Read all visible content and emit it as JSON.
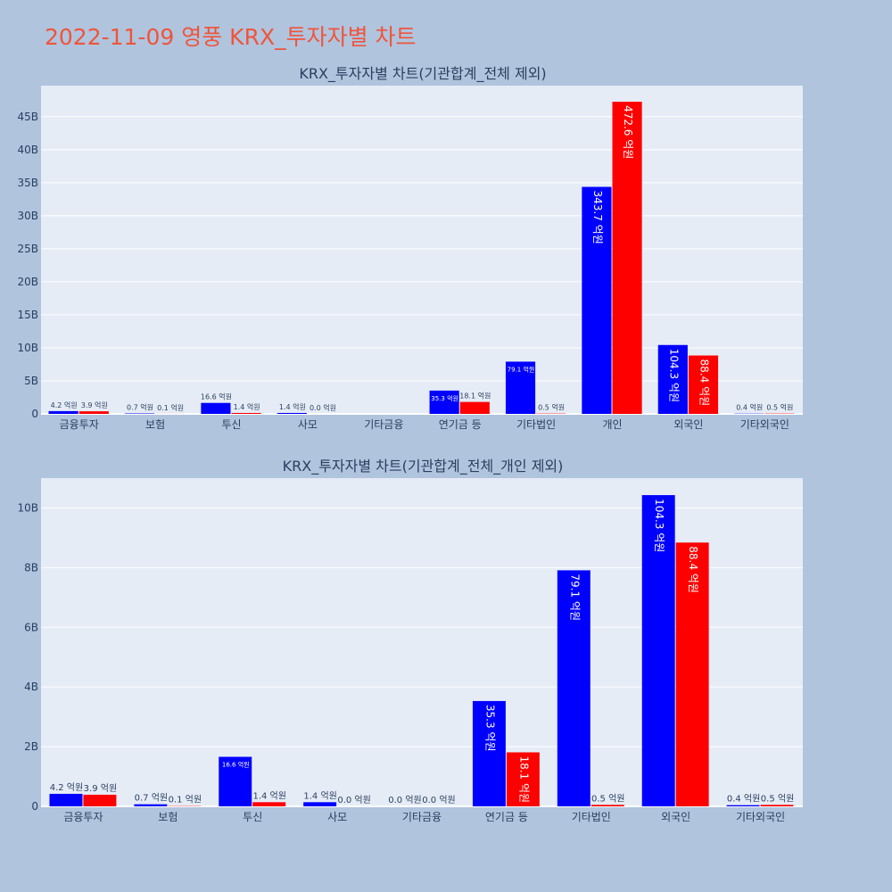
{
  "page_title": "2022-11-09 영풍 KRX_투자자별 차트",
  "colors": {
    "series_a": "#0000ff",
    "series_b": "#ff0000",
    "plot_bg": "#e5ecf6",
    "page_bg": "#b0c4de",
    "title": "#ef553b"
  },
  "chart_data": [
    {
      "type": "bar",
      "title": "KRX_투자자별 차트(기관합계_전체 제외)",
      "categories": [
        "금융투자",
        "보험",
        "투신",
        "사모",
        "기타금융",
        "연기금 등",
        "기타법인",
        "개인",
        "외국인",
        "기타외국인"
      ],
      "series": [
        {
          "values": [
            420000000,
            70000000,
            1660000000,
            140000000,
            0,
            3530000000,
            7910000000,
            34370000000,
            10430000000,
            40000000
          ],
          "labels": [
            "4.2 억원",
            "0.7 억원",
            "16.6 억원",
            "1.4 억원",
            "",
            "35.3 억원",
            "79.1 억원",
            "343.7 억원",
            "104.3 억원",
            "0.4 억원"
          ]
        },
        {
          "values": [
            390000000,
            10000000,
            140000000,
            0,
            0,
            1810000000,
            50000000,
            47260000000,
            8840000000,
            50000000
          ],
          "labels": [
            "3.9 억원",
            "0.1 억원",
            "1.4 억원",
            "0.0 억원",
            "",
            "18.1 억원",
            "0.5 억원",
            "472.6 억원",
            "88.4 억원",
            "0.5 억원"
          ]
        }
      ],
      "yticks": [
        0,
        5000000000,
        10000000000,
        15000000000,
        20000000000,
        25000000000,
        30000000000,
        35000000000,
        40000000000,
        45000000000
      ],
      "ytick_labels": [
        "0",
        "5B",
        "10B",
        "15B",
        "20B",
        "25B",
        "30B",
        "35B",
        "40B",
        "45B"
      ],
      "ylim": [
        0,
        49700000000
      ],
      "grid": true
    },
    {
      "type": "bar",
      "title": "KRX_투자자별 차트(기관합계_전체_개인 제외)",
      "categories": [
        "금융투자",
        "보험",
        "투신",
        "사모",
        "기타금융",
        "연기금 등",
        "기타법인",
        "외국인",
        "기타외국인"
      ],
      "series": [
        {
          "values": [
            420000000,
            70000000,
            1660000000,
            140000000,
            0,
            3530000000,
            7910000000,
            10430000000,
            40000000
          ],
          "labels": [
            "4.2 억원",
            "0.7 억원",
            "16.6 억원",
            "1.4 억원",
            "0.0 억원",
            "35.3 억원",
            "79.1 억원",
            "104.3 억원",
            "0.4 억원"
          ]
        },
        {
          "values": [
            390000000,
            10000000,
            140000000,
            0,
            0,
            1810000000,
            50000000,
            8840000000,
            50000000
          ],
          "labels": [
            "3.9 억원",
            "0.1 억원",
            "1.4 억원",
            "0.0 억원",
            "0.0 억원",
            "18.1 억원",
            "0.5 억원",
            "88.4 억원",
            "0.5 억원"
          ]
        }
      ],
      "yticks": [
        0,
        2000000000,
        4000000000,
        6000000000,
        8000000000,
        10000000000
      ],
      "ytick_labels": [
        "0",
        "2B",
        "4B",
        "6B",
        "8B",
        "10B"
      ],
      "ylim": [
        0,
        11000000000
      ],
      "grid": true
    }
  ]
}
